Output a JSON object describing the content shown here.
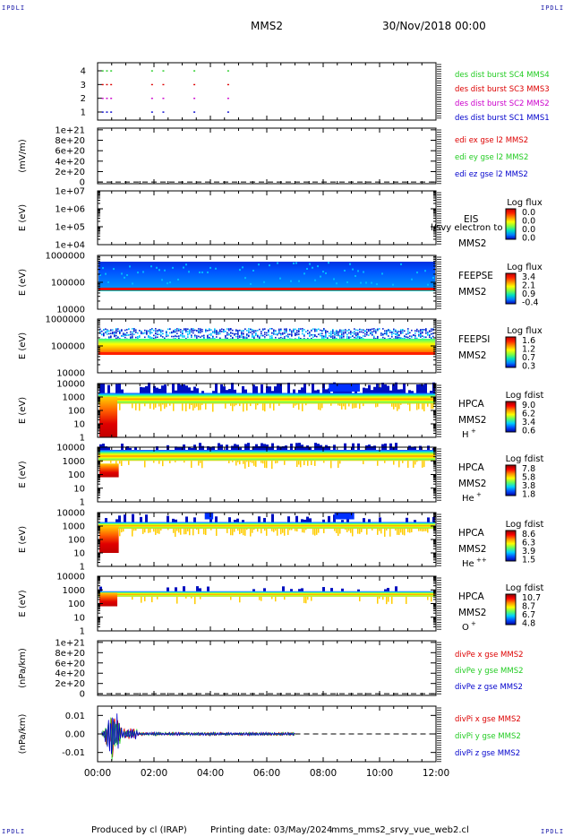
{
  "header": {
    "corner_tl": "IPDLI",
    "corner_tr": "IPDLI",
    "corner_bl": "IPDLI",
    "corner_br": "IPDLI",
    "spacecraft": "MMS2",
    "date": "30/Nov/2018 00:00"
  },
  "footer": {
    "produced_by": "Produced by cl (IRAP)",
    "printing_date": "Printing date: 03/May/2024",
    "script": "mms_mms2_srvy_vue_web2.cl"
  },
  "colors": {
    "red": "#dd0000",
    "green": "#22cc22",
    "blue": "#0000cc",
    "magenta": "#cc00cc",
    "nodata": "#ffffff"
  },
  "chart_data": [
    {
      "type": "scatter",
      "id": "burst",
      "yticks": [
        "1",
        "2",
        "3",
        "4"
      ],
      "series": [
        {
          "name": "des dist burst SC1 MMS1",
          "color": "#0000cc",
          "level": 1
        },
        {
          "name": "des dist burst SC2 MMS2",
          "color": "#cc00cc",
          "level": 2
        },
        {
          "name": "des dist burst SC3 MMS3",
          "color": "#dd0000",
          "level": 3
        },
        {
          "name": "des dist burst SC4 MMS4",
          "color": "#22cc22",
          "level": 4
        }
      ],
      "burst_times_h": [
        0.15,
        0.3,
        0.45,
        1.9,
        2.3,
        3.4,
        4.6
      ]
    },
    {
      "type": "line",
      "id": "edi",
      "ylabel": "(mV/m)",
      "yticks": [
        "1e+21",
        "8e+20",
        "6e+20",
        "4e+20",
        "2e+20",
        "0"
      ],
      "series": [
        {
          "name": "edi ex gse l2 MMS2",
          "color": "#dd0000"
        },
        {
          "name": "edi ey gse l2 MMS2",
          "color": "#22cc22"
        },
        {
          "name": "edi ez gse l2 MMS2",
          "color": "#0000cc"
        }
      ]
    },
    {
      "type": "heatmap",
      "id": "eis",
      "ylabel": "E (eV)",
      "yticks": [
        "1e+07",
        "1e+06",
        "1e+05",
        "1e+04"
      ],
      "instrument": "EIS",
      "overlay": "l/svy electron to",
      "sc": "MMS2",
      "cb_title": "Log flux",
      "cb_ticks": [
        "0.0",
        "0.0",
        "0.0",
        "0.0"
      ]
    },
    {
      "type": "heatmap",
      "id": "feepse",
      "ylabel": "E (eV)",
      "yticks": [
        "1000000",
        "100000",
        "10000"
      ],
      "instrument": "FEEPSE",
      "sc": "MMS2",
      "cb_title": "Log flux",
      "cb_ticks": [
        "3.4",
        "2.1",
        "0.9",
        "-0.4"
      ]
    },
    {
      "type": "heatmap",
      "id": "feepsi",
      "ylabel": "E (eV)",
      "yticks": [
        "1000000",
        "100000",
        "10000"
      ],
      "instrument": "FEEPSI",
      "sc": "MMS2",
      "cb_title": "Log flux",
      "cb_ticks": [
        "1.6",
        "1.2",
        "0.7",
        "0.3"
      ]
    },
    {
      "type": "heatmap",
      "id": "hpca_h",
      "ylabel": "E (eV)",
      "yticks": [
        "10000",
        "1000",
        "100",
        "10",
        "1"
      ],
      "instrument": "HPCA",
      "sc": "MMS2",
      "species": "H",
      "species_sup": "+",
      "cb_title": "Log fdist",
      "cb_ticks": [
        "9.0",
        "6.2",
        "3.4",
        "0.6"
      ]
    },
    {
      "type": "heatmap",
      "id": "hpca_he",
      "ylabel": "E (eV)",
      "yticks": [
        "10000",
        "1000",
        "100",
        "10",
        "1"
      ],
      "instrument": "HPCA",
      "sc": "MMS2",
      "species": "He",
      "species_sup": "+",
      "cb_title": "Log fdist",
      "cb_ticks": [
        "7.8",
        "5.8",
        "3.8",
        "1.8"
      ]
    },
    {
      "type": "heatmap",
      "id": "hpca_he2",
      "ylabel": "E (eV)",
      "yticks": [
        "10000",
        "1000",
        "100",
        "10",
        "1"
      ],
      "instrument": "HPCA",
      "sc": "MMS2",
      "species": "He",
      "species_sup": "++",
      "cb_title": "Log fdist",
      "cb_ticks": [
        "8.6",
        "6.3",
        "3.9",
        "1.5"
      ]
    },
    {
      "type": "heatmap",
      "id": "hpca_o",
      "ylabel": "E (eV)",
      "yticks": [
        "10000",
        "1000",
        "100",
        "10",
        "1"
      ],
      "instrument": "HPCA",
      "sc": "MMS2",
      "species": "O",
      "species_sup": "+",
      "cb_title": "Log fdist",
      "cb_ticks": [
        "10.7",
        "8.7",
        "6.7",
        "4.8"
      ]
    },
    {
      "type": "line",
      "id": "divpe",
      "ylabel": "(nPa/km)",
      "yticks": [
        "1e+21",
        "8e+20",
        "6e+20",
        "4e+20",
        "2e+20",
        "0"
      ],
      "series": [
        {
          "name": "divPe x gse MMS2",
          "color": "#dd0000"
        },
        {
          "name": "divPe y gse MMS2",
          "color": "#22cc22"
        },
        {
          "name": "divPe z gse MMS2",
          "color": "#0000cc"
        }
      ]
    },
    {
      "type": "line",
      "id": "divpi",
      "ylabel": "(nPa/km)",
      "yticks": [
        "0.01",
        "0.00",
        "-0.01"
      ],
      "ylim": [
        -0.015,
        0.015
      ],
      "series": [
        {
          "name": "divPi x gse MMS2",
          "color": "#dd0000"
        },
        {
          "name": "divPi y gse MMS2",
          "color": "#22cc22"
        },
        {
          "name": "divPi z gse MMS2",
          "color": "#0000cc"
        }
      ],
      "data_end_h": 7.0
    }
  ],
  "xaxis": {
    "ticks": [
      "00:00",
      "02:00",
      "04:00",
      "06:00",
      "08:00",
      "10:00",
      "12:00"
    ],
    "xlim_h": [
      0,
      12
    ]
  }
}
